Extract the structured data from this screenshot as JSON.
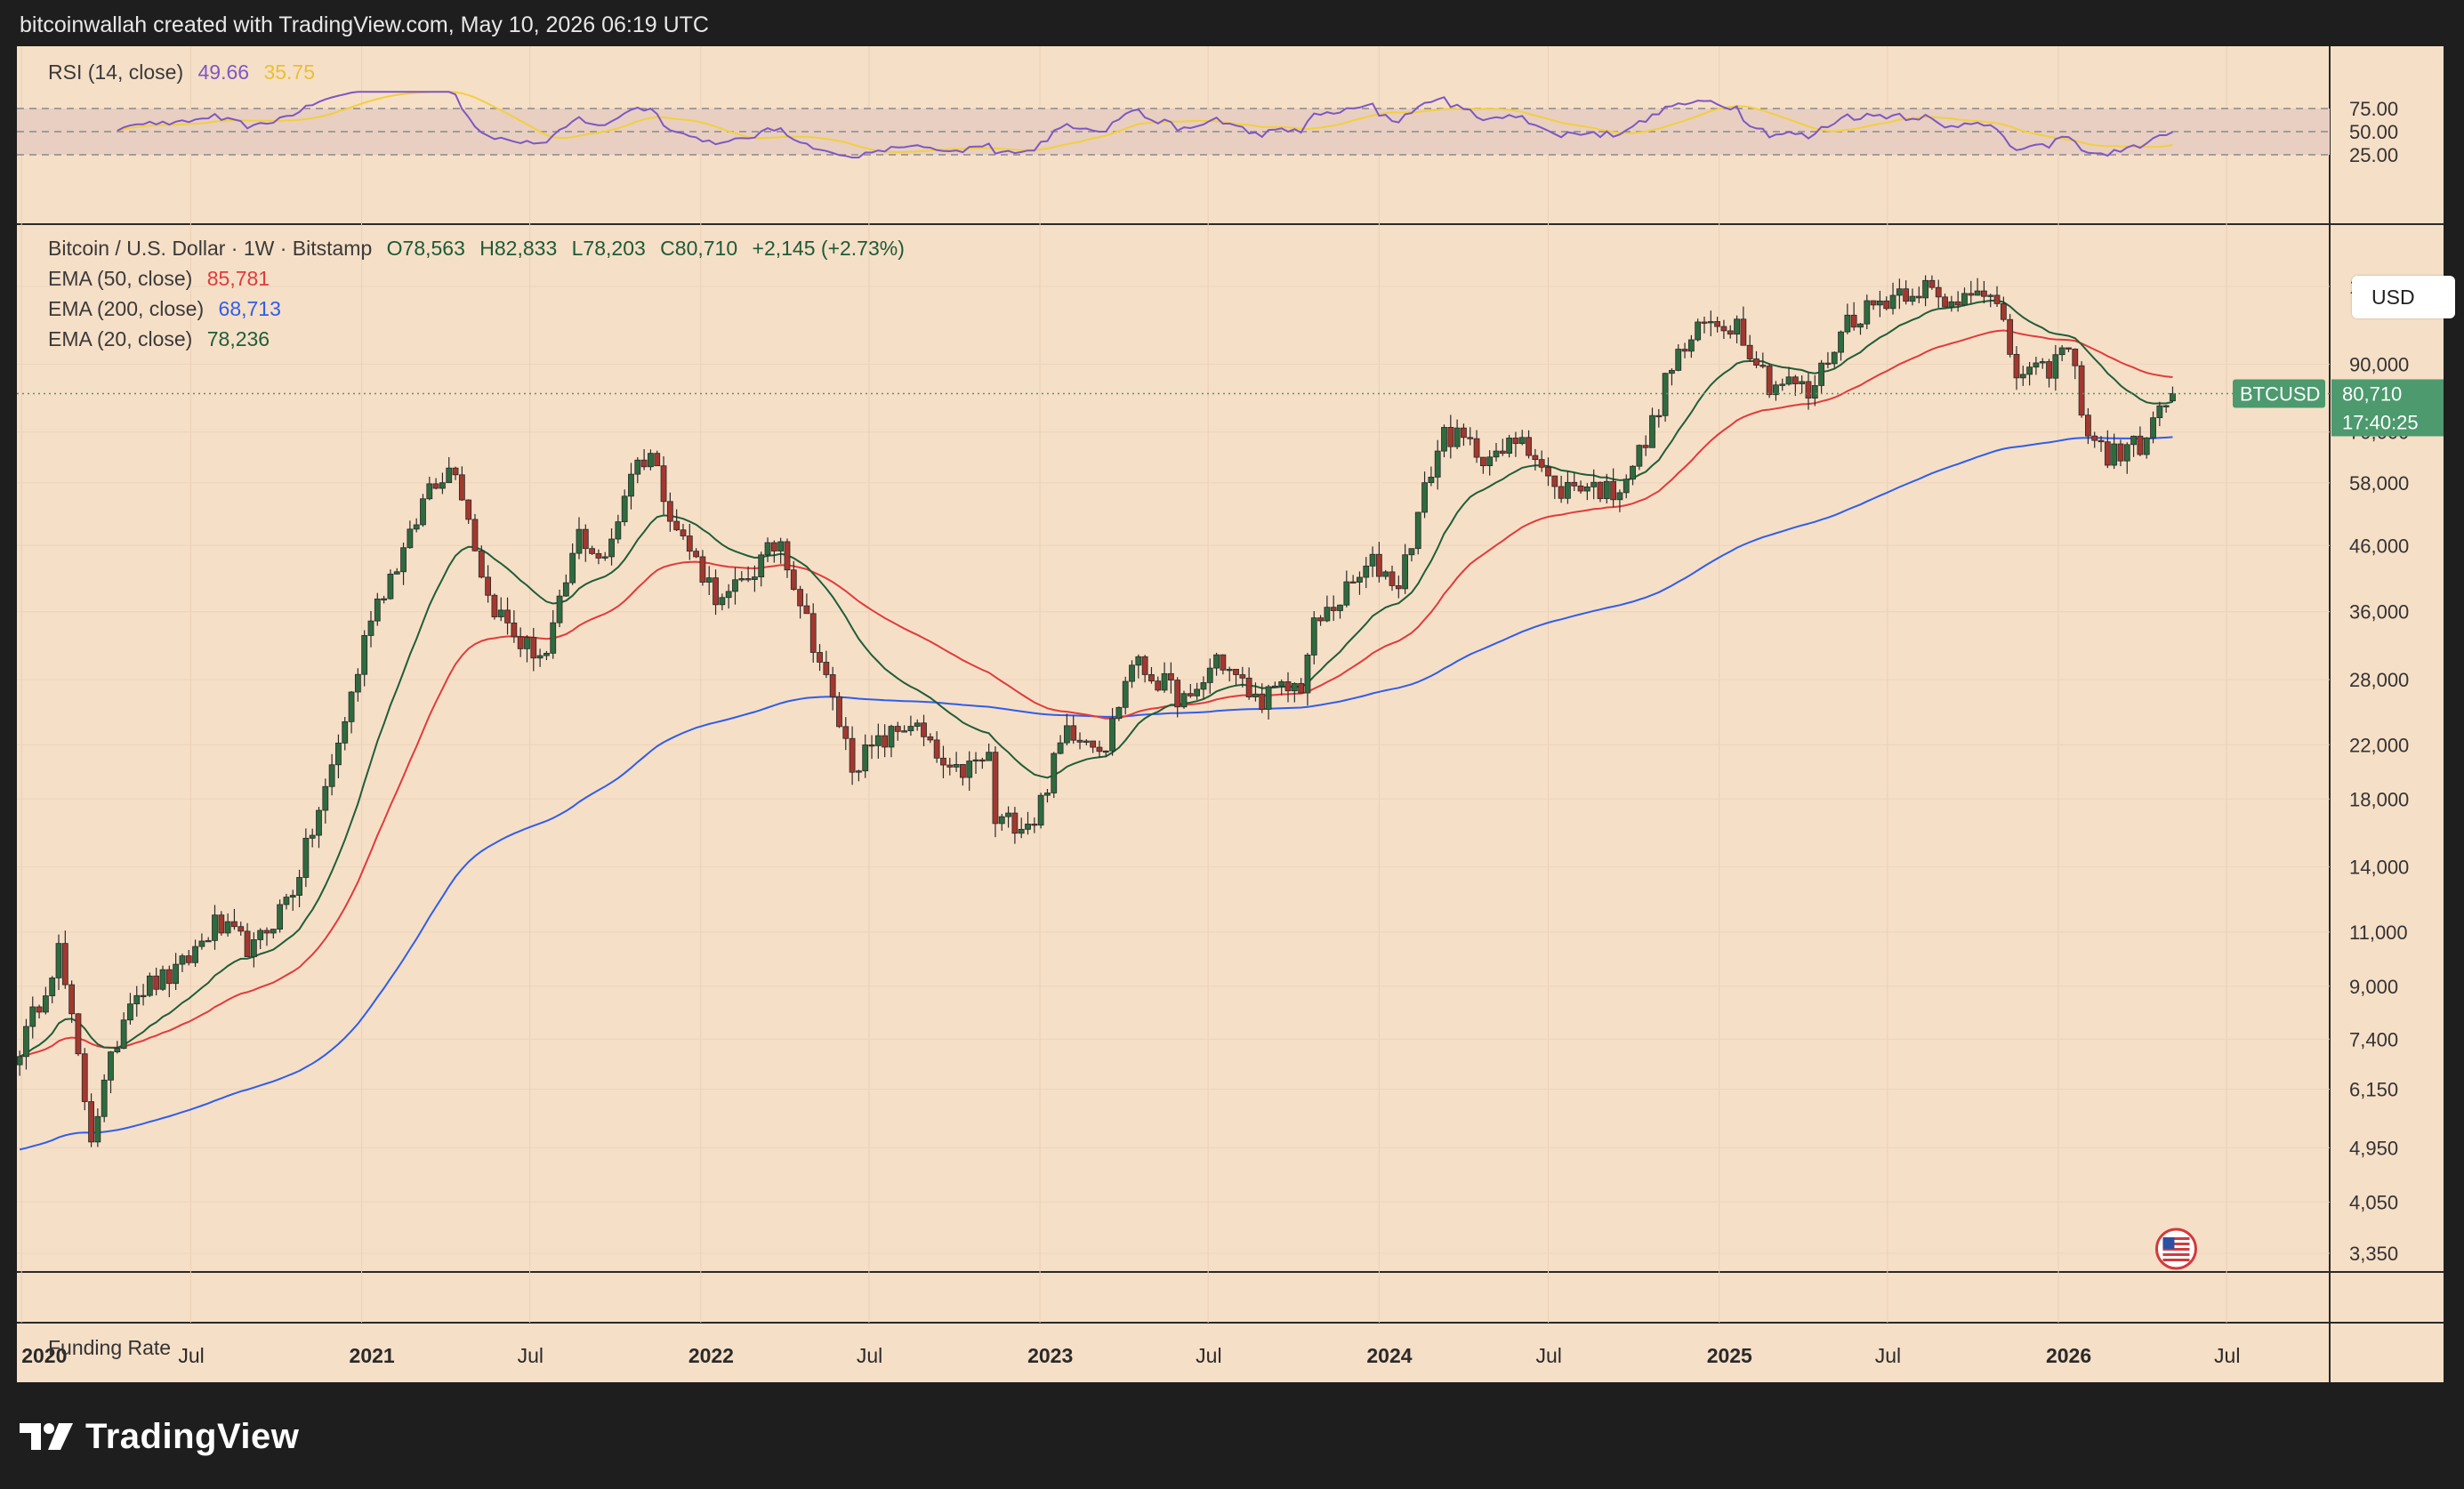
{
  "header": {
    "attribution": "bitcoinwallah created with TradingView.com, May 10, 2026 06:19 UTC"
  },
  "rsi": {
    "label": "RSI (14, close)",
    "value": "49.66",
    "ma_value": "35.75",
    "levels": [
      "75.00",
      "50.00",
      "25.00"
    ]
  },
  "legend": {
    "title": "Bitcoin / U.S. Dollar · 1W · Bitstamp",
    "open": "O78,563",
    "high": "H82,833",
    "low": "L78,203",
    "close": "C80,710",
    "change": "+2,145 (+2.73%)",
    "ema50_label": "EMA (50, close)",
    "ema50_value": "85,781",
    "ema200_label": "EMA (200, close)",
    "ema200_value": "68,713",
    "ema20_label": "EMA (20, close)",
    "ema20_value": "78,236"
  },
  "currency_button": "USD",
  "price_tag": {
    "symbol": "BTCUSD",
    "price": "80,710",
    "countdown": "17:40:25"
  },
  "funding_rate_label": "Funding Rate",
  "brand": "TradingView",
  "colors": {
    "background": "#f6dfc7",
    "up": "#2e6b3e",
    "down": "#a3382e",
    "ema50": "#e03b3b",
    "ema200": "#2f5ee8",
    "ema20": "#1f5e38",
    "rsi": "#7e57c2",
    "rsi_ma": "#f2cf3e",
    "price_tag": "#4c9a6e"
  },
  "chart_data": {
    "type": "candlestick",
    "interval": "1W",
    "y_scale": "log",
    "y_ticks": [
      120000,
      90000,
      70000,
      58000,
      46000,
      36000,
      28000,
      22000,
      18000,
      14000,
      11000,
      9000,
      7400,
      6150,
      4950,
      4050,
      3350
    ],
    "y_tick_labels": [
      "120,000",
      "90,000",
      "70,000",
      "58,000",
      "46,000",
      "36,000",
      "28,000",
      "22,000",
      "18,000",
      "14,000",
      "11,000",
      "9,000",
      "7,400",
      "6,150",
      "4,950",
      "4,050",
      "3,350"
    ],
    "x_ticks": [
      {
        "date": "2020-01-01",
        "label": "2020",
        "bold": true
      },
      {
        "date": "2020-07-01",
        "label": "Jul",
        "bold": false
      },
      {
        "date": "2021-01-01",
        "label": "2021",
        "bold": true
      },
      {
        "date": "2021-07-01",
        "label": "Jul",
        "bold": false
      },
      {
        "date": "2022-01-01",
        "label": "2022",
        "bold": true
      },
      {
        "date": "2022-07-01",
        "label": "Jul",
        "bold": false
      },
      {
        "date": "2023-01-01",
        "label": "2023",
        "bold": true
      },
      {
        "date": "2023-07-01",
        "label": "Jul",
        "bold": false
      },
      {
        "date": "2024-01-01",
        "label": "2024",
        "bold": true
      },
      {
        "date": "2024-07-01",
        "label": "Jul",
        "bold": false
      },
      {
        "date": "2025-01-01",
        "label": "2025",
        "bold": true
      },
      {
        "date": "2025-07-01",
        "label": "Jul",
        "bold": false
      },
      {
        "date": "2026-01-01",
        "label": "2026",
        "bold": true
      },
      {
        "date": "2026-07-01",
        "label": "Jul",
        "bold": false
      }
    ],
    "x_range": [
      "2019-12-27",
      "2026-10-20"
    ],
    "price_anchors": [
      [
        "2020-01-01",
        7200
      ],
      [
        "2020-02-10",
        10300
      ],
      [
        "2020-03-16",
        5200
      ],
      [
        "2020-04-27",
        8800
      ],
      [
        "2020-06-15",
        9400
      ],
      [
        "2020-07-27",
        11300
      ],
      [
        "2020-09-07",
        10300
      ],
      [
        "2020-10-19",
        12900
      ],
      [
        "2020-11-23",
        18500
      ],
      [
        "2020-12-28",
        29000
      ],
      [
        "2021-01-11",
        36000
      ],
      [
        "2021-02-22",
        47000
      ],
      [
        "2021-03-15",
        58000
      ],
      [
        "2021-04-12",
        62000
      ],
      [
        "2021-05-17",
        38000
      ],
      [
        "2021-06-21",
        32000
      ],
      [
        "2021-07-19",
        30500
      ],
      [
        "2021-08-23",
        48000
      ],
      [
        "2021-09-20",
        43000
      ],
      [
        "2021-10-18",
        61000
      ],
      [
        "2021-11-08",
        65000
      ],
      [
        "2021-12-06",
        49000
      ],
      [
        "2022-01-24",
        37000
      ],
      [
        "2022-03-28",
        47000
      ],
      [
        "2022-05-09",
        30000
      ],
      [
        "2022-06-13",
        20500
      ],
      [
        "2022-08-15",
        24000
      ],
      [
        "2022-09-26",
        19500
      ],
      [
        "2022-11-07",
        21000
      ],
      [
        "2022-11-14",
        16500
      ],
      [
        "2022-12-26",
        16700
      ],
      [
        "2023-01-30",
        23500
      ],
      [
        "2023-03-13",
        22000
      ],
      [
        "2023-04-10",
        30000
      ],
      [
        "2023-06-12",
        25500
      ],
      [
        "2023-07-10",
        30500
      ],
      [
        "2023-08-21",
        26000
      ],
      [
        "2023-10-09",
        27500
      ],
      [
        "2023-10-23",
        34000
      ],
      [
        "2023-12-25",
        43000
      ],
      [
        "2024-01-22",
        40000
      ],
      [
        "2024-02-26",
        61000
      ],
      [
        "2024-03-11",
        70000
      ],
      [
        "2024-05-06",
        63000
      ],
      [
        "2024-06-03",
        70000
      ],
      [
        "2024-07-08",
        56000
      ],
      [
        "2024-08-05",
        58000
      ],
      [
        "2024-09-09",
        56000
      ],
      [
        "2024-10-14",
        67000
      ],
      [
        "2024-11-11",
        90000
      ],
      [
        "2024-12-16",
        104000
      ],
      [
        "2025-01-20",
        105000
      ],
      [
        "2025-02-24",
        84000
      ],
      [
        "2025-03-24",
        84000
      ],
      [
        "2025-04-07",
        80000
      ],
      [
        "2025-05-19",
        106000
      ],
      [
        "2025-07-14",
        118000
      ],
      [
        "2025-08-11",
        120000
      ],
      [
        "2025-09-01",
        110000
      ],
      [
        "2025-10-06",
        123000
      ],
      [
        "2025-10-27",
        110000
      ],
      [
        "2025-11-17",
        87000
      ],
      [
        "2025-12-15",
        87000
      ],
      [
        "2026-01-12",
        96000
      ],
      [
        "2026-02-02",
        70000
      ],
      [
        "2026-02-23",
        64000
      ],
      [
        "2026-03-30",
        67000
      ],
      [
        "2026-04-20",
        75000
      ],
      [
        "2026-05-04",
        80710
      ]
    ],
    "last": {
      "date": "2026-05-04",
      "open": 78563,
      "high": 82833,
      "low": 78203,
      "close": 80710,
      "change": 2145,
      "change_pct": 2.73
    },
    "ema_last": {
      "ema20": 78236,
      "ema50": 85781,
      "ema200": 68713
    },
    "rsi_last": {
      "rsi": 49.66,
      "rsi_ma": 35.75
    },
    "rsi_ylim": [
      20,
      95
    ]
  }
}
